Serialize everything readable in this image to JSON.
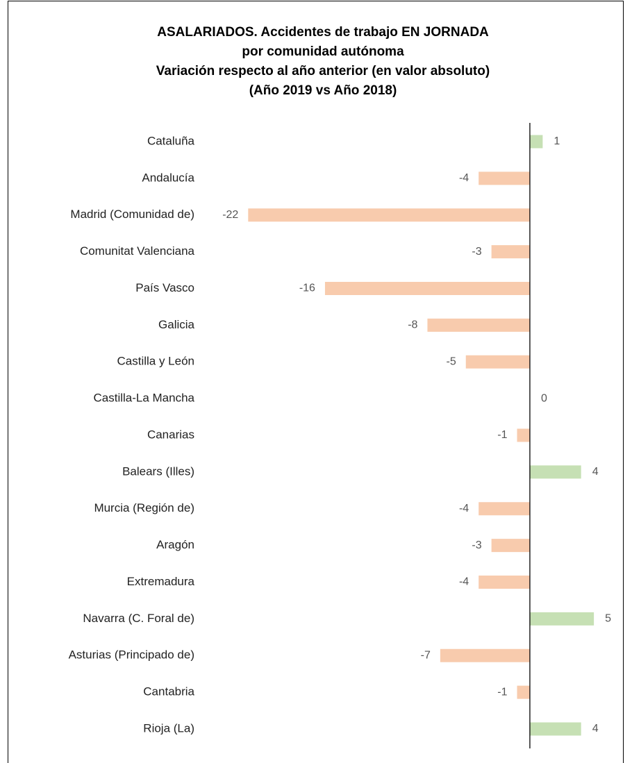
{
  "chart_data": {
    "type": "barh",
    "title": [
      "ASALARIADOS. Accidentes de trabajo EN JORNADA",
      "por comunidad autónoma",
      "Variación respecto al año anterior (en valor absoluto)",
      "(Año 2019 vs Año 2018)"
    ],
    "categories": [
      "Cataluña",
      "Andalucía",
      "Madrid (Comunidad de)",
      "Comunitat Valenciana",
      "País Vasco",
      "Galicia",
      "Castilla y León",
      "Castilla-La Mancha",
      "Canarias",
      "Balears (Illes)",
      "Murcia (Región de)",
      "Aragón",
      "Extremadura",
      "Navarra (C. Foral de)",
      "Asturias (Principado de)",
      "Cantabria",
      "Rioja (La)"
    ],
    "values": [
      1,
      -4,
      -22,
      -3,
      -16,
      -8,
      -5,
      0,
      -1,
      4,
      -4,
      -3,
      -4,
      5,
      -7,
      -1,
      4
    ],
    "positive_color": "#c6e0b4",
    "negative_color": "#f8cbad",
    "xlim": [
      -25,
      7
    ]
  }
}
